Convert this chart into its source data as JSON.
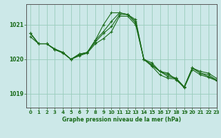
{
  "title": "Graphe pression niveau de la mer (hPa)",
  "background_color": "#cce8e8",
  "grid_color": "#99ccbb",
  "line_color": "#1a6b1a",
  "xlim": [
    -0.5,
    23
  ],
  "ylim": [
    1018.6,
    1021.6
  ],
  "yticks": [
    1019,
    1020,
    1021
  ],
  "xticks": [
    0,
    1,
    2,
    3,
    4,
    5,
    6,
    7,
    8,
    9,
    10,
    11,
    12,
    13,
    14,
    15,
    16,
    17,
    18,
    19,
    20,
    21,
    22,
    23
  ],
  "series": [
    [
      1020.75,
      1020.45,
      1020.45,
      1020.3,
      1020.2,
      1020.0,
      1020.15,
      1020.2,
      1020.55,
      1021.0,
      1021.35,
      1021.35,
      1021.3,
      1021.15,
      1020.0,
      1019.9,
      1019.65,
      1019.6,
      1019.4,
      1019.2,
      1019.75,
      1019.65,
      1019.6,
      1019.45
    ],
    [
      1020.75,
      1020.45,
      1020.45,
      1020.3,
      1020.2,
      1020.0,
      1020.15,
      1020.2,
      1020.55,
      1020.8,
      1021.1,
      1021.35,
      1021.3,
      1021.1,
      1020.0,
      1019.85,
      1019.65,
      1019.55,
      1019.45,
      1019.2,
      1019.75,
      1019.6,
      1019.55,
      1019.4
    ],
    [
      1020.75,
      1020.45,
      1020.45,
      1020.28,
      1020.2,
      1020.0,
      1020.12,
      1020.2,
      1020.5,
      1020.75,
      1020.95,
      1021.3,
      1021.3,
      1021.05,
      1020.0,
      1019.82,
      1019.65,
      1019.5,
      1019.45,
      1019.2,
      1019.75,
      1019.6,
      1019.5,
      1019.4
    ],
    [
      1020.65,
      1020.45,
      1020.45,
      1020.28,
      1020.18,
      1020.0,
      1020.1,
      1020.18,
      1020.45,
      1020.6,
      1020.8,
      1021.25,
      1021.25,
      1021.0,
      1020.0,
      1019.8,
      1019.55,
      1019.45,
      1019.43,
      1019.17,
      1019.7,
      1019.55,
      1019.48,
      1019.38
    ]
  ],
  "figsize": [
    3.2,
    2.0
  ],
  "dpi": 100
}
